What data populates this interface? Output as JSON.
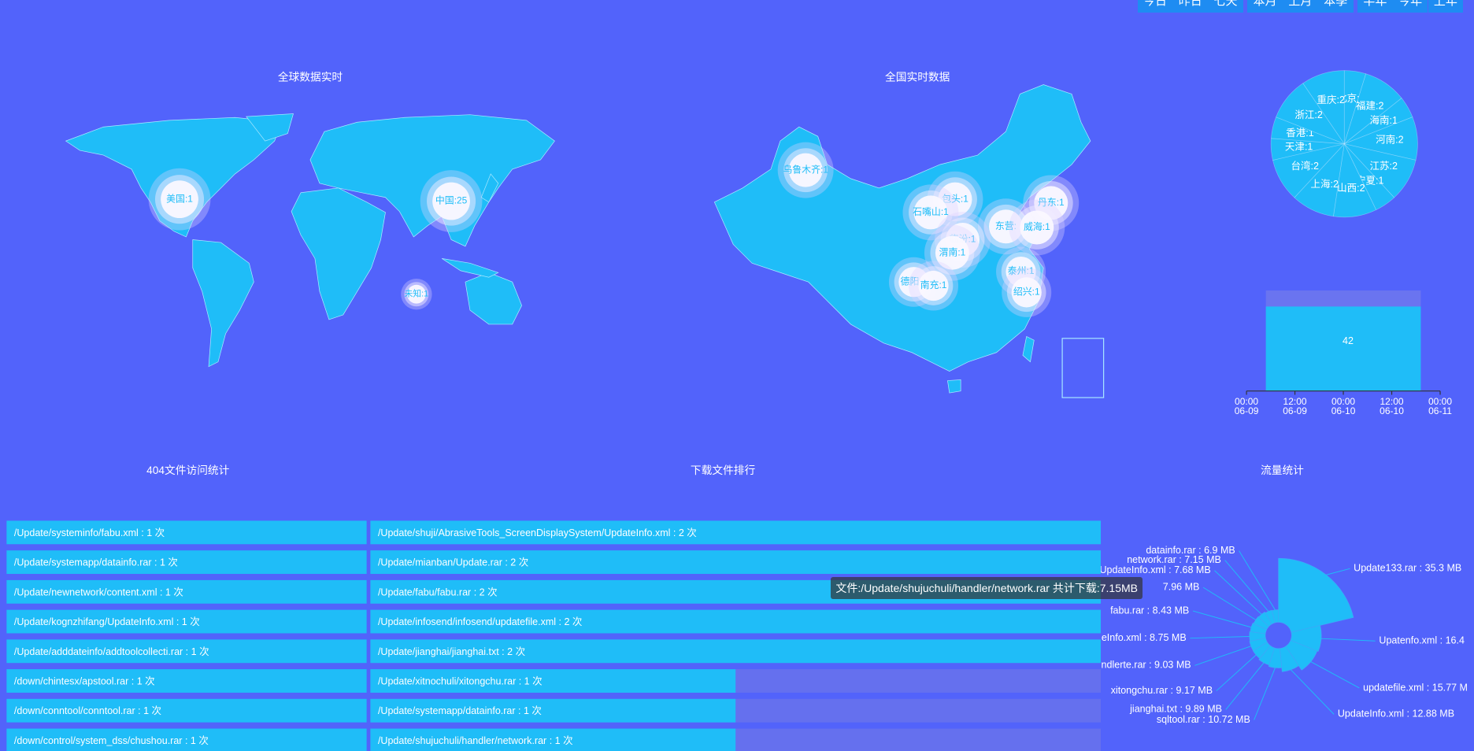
{
  "toolbar": {
    "groups": [
      [
        "今日",
        "昨日",
        "七天"
      ],
      [
        "本月",
        "上月",
        "本季"
      ],
      [
        "半年",
        "今年",
        "上年"
      ]
    ]
  },
  "chart_data": [
    {
      "type": "map",
      "region": "world",
      "title": "全球数据实时",
      "color": "#1fbdf8",
      "values": [
        1,
        25,
        1
      ],
      "value_labels": [
        "美国:1",
        "中国:25",
        "未知:1"
      ]
    },
    {
      "type": "map",
      "region": "china",
      "title": "全国实时数据",
      "color": "#1fbdf8",
      "values": [
        1,
        1,
        1,
        1,
        1,
        1,
        1,
        1,
        1,
        1,
        1,
        1
      ],
      "value_labels": [
        "乌鲁木齐:1",
        "包头:1",
        "丹东:1",
        "石嘴山:1",
        "东营:",
        "威海:1",
        "临汾:1",
        "渭南:1",
        "泰州:1",
        "德阳:1",
        "南充:1",
        "绍兴:1"
      ]
    },
    {
      "type": "pie",
      "color": "#1fbdf8",
      "values": [
        1,
        2,
        1,
        2,
        2,
        1,
        2,
        2,
        2,
        1,
        1,
        2,
        2
      ],
      "value_labels": [
        "北京:1",
        "福建:2",
        "海南:1",
        "河南:2",
        "江苏:2",
        "宁夏:1",
        "山西:2",
        "上海:2",
        "台湾:2",
        "天津:1",
        "香港:1",
        "浙江:2",
        "重庆:2"
      ]
    },
    {
      "type": "bar",
      "color": "#1fbdf8",
      "background": true,
      "x": [
        24
      ],
      "values": [
        42
      ],
      "xlim": [
        0,
        48
      ],
      "ylim": [
        0,
        50
      ],
      "xticks": [
        {
          "value": 0,
          "label": "00:00\n06-09"
        },
        {
          "value": 12,
          "label": "12:00\n06-09"
        },
        {
          "value": 24,
          "label": "00:00\n06-10"
        },
        {
          "value": 36,
          "label": "12:00\n06-10"
        },
        {
          "value": 48,
          "label": "00:00\n06-11"
        }
      ]
    },
    {
      "type": "list",
      "title": "404文件访问统计",
      "color": "#1fbdf8",
      "items": [
        "/Update/systeminfo/fabu.xml : 1 次",
        "/Update/systemapp/datainfo.rar : 1 次",
        "/Update/newnetwork/content.xml : 1 次",
        "/Update/kognzhifang/UpdateInfo.xml : 1 次",
        "/Update/adddateinfo/addtoolcollecti.rar : 1 次",
        "/down/chintesx/apstool.rar : 1 次",
        "/down/conntool/conntool.rar : 1 次",
        "/down/control/system_dss/chushou.rar : 1 次"
      ]
    },
    {
      "type": "bar",
      "orientation": "horizontal",
      "title": "下载文件排行",
      "color": "#1fbdf8",
      "background": true,
      "xlim": [
        0,
        2
      ],
      "values": [
        2,
        2,
        2,
        2,
        2,
        1,
        1,
        1
      ],
      "value_labels": [
        "/Update/shuji/AbrasiveTools_ScreenDisplaySystem/UpdateInfo.xml : 2 次",
        "/Update/mianban/Update.rar : 2 次",
        "/Update/fabu/fabu.rar : 2 次",
        "/Update/infosend/infosend/updatefile.xml : 2 次",
        "/Update/jianghai/jianghai.txt : 2 次",
        "/Update/xitnochuli/xitongchu.rar : 1 次",
        "/Update/systemapp/datainfo.rar : 1 次",
        "/Update/shujuchuli/handler/network.rar : 1 次"
      ]
    },
    {
      "type": "pie",
      "rose": true,
      "title": "流量统计",
      "color": "#1fbdf8",
      "values": [
        35.3,
        16.4,
        15.77,
        12.88,
        10.72,
        9.89,
        9.17,
        9.03,
        8.75,
        8.43,
        7.96,
        7.68,
        7.15,
        6.9
      ],
      "value_labels": [
        "Update133.rar : 35.3 MB",
        "Upatenfo.xml : 16.4",
        "updatefile.xml : 15.77 M",
        "UpdateInfo.xml : 12.88 MB",
        "sqltool.rar : 10.72 MB",
        "jianghai.txt : 9.89 MB",
        "xitongchu.rar : 9.17 MB",
        "ndlerte.rar : 9.03 MB",
        "eInfo.xml : 8.75 MB",
        "fabu.rar : 8.43 MB",
        "7.96 MB",
        "UpdateInfo.xml : 7.68 MB",
        "network.rar : 7.15 MB",
        "datainfo.rar : 6.9 MB"
      ],
      "tooltip": "文件:/Update/shujuchuli/handler/network.rar 共计下载:7.15MB"
    }
  ]
}
